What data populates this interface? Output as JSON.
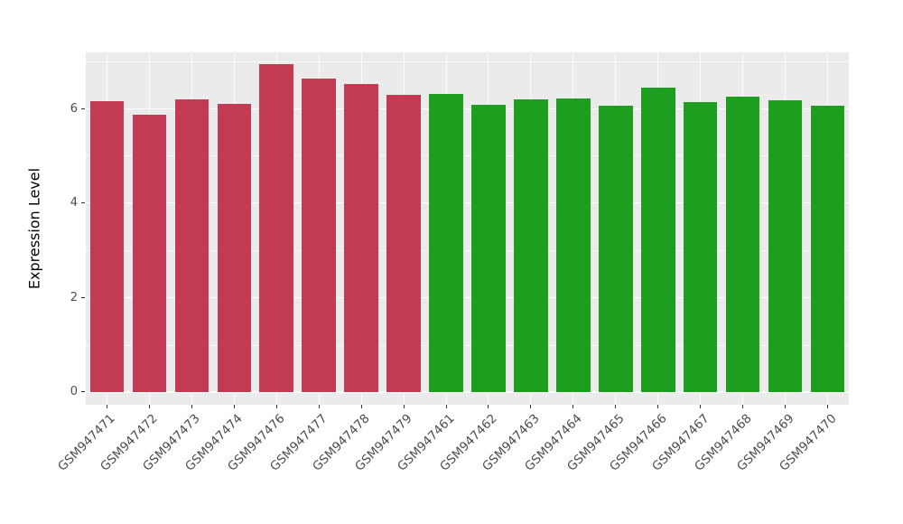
{
  "chart_data": {
    "type": "bar",
    "title": "",
    "xlabel": "",
    "ylabel": "Expression Level",
    "categories": [
      "GSM947471",
      "GSM947472",
      "GSM947473",
      "GSM947474",
      "GSM947476",
      "GSM947477",
      "GSM947478",
      "GSM947479",
      "GSM947461",
      "GSM947462",
      "GSM947463",
      "GSM947464",
      "GSM947465",
      "GSM947466",
      "GSM947467",
      "GSM947468",
      "GSM947469",
      "GSM947470"
    ],
    "values": [
      6.15,
      5.87,
      6.19,
      6.1,
      6.94,
      6.63,
      6.52,
      6.29,
      6.31,
      6.08,
      6.19,
      6.21,
      6.06,
      6.44,
      6.13,
      6.25,
      6.17,
      6.07
    ],
    "colors": [
      "#C23B52",
      "#C23B52",
      "#C23B52",
      "#C23B52",
      "#C23B52",
      "#C23B52",
      "#C23B52",
      "#C23B52",
      "#1E9E1E",
      "#1E9E1E",
      "#1E9E1E",
      "#1E9E1E",
      "#1E9E1E",
      "#1E9E1E",
      "#1E9E1E",
      "#1E9E1E",
      "#1E9E1E",
      "#1E9E1E"
    ],
    "yticks": [
      0,
      2,
      4,
      6
    ],
    "ytick_labels": [
      "0",
      "2",
      "4",
      "6"
    ],
    "yticks_minor": [
      1,
      3,
      5,
      7
    ],
    "ylim": [
      0,
      7.2
    ],
    "grid": true,
    "legend_position": "none",
    "panel_background": "#EBEBEB",
    "gridline_color": "#FFFFFF"
  }
}
